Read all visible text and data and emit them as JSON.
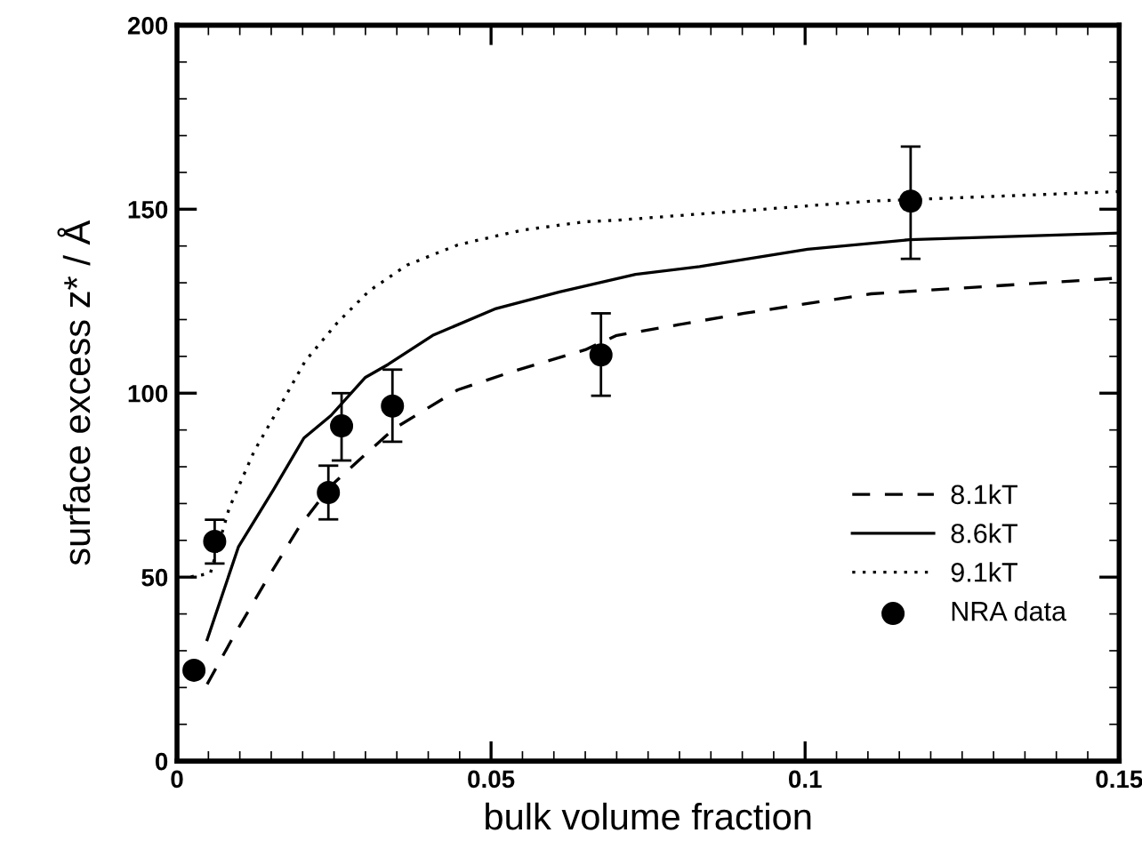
{
  "chart_data": {
    "type": "line",
    "xlabel": "bulk volume fraction",
    "ylabel": "surface excess z* / Å",
    "xlim": [
      0,
      0.15
    ],
    "ylim": [
      0,
      200
    ],
    "xticks": [
      0,
      0.05,
      0.1,
      0.15
    ],
    "yticks": [
      0,
      50,
      100,
      150,
      200
    ],
    "grid": false,
    "legend": "bottom right",
    "series": [
      {
        "name": "8.1kT",
        "color": "#000000",
        "line_style": "dashed",
        "x": [
          0.0048,
          0.0093,
          0.0144,
          0.0194,
          0.0245,
          0.0306,
          0.0346,
          0.0447,
          0.0538,
          0.065,
          0.07,
          0.0903,
          0.1105,
          0.15
        ],
        "values": [
          20.9,
          34.8,
          49.6,
          63.5,
          74.8,
          84.3,
          90.4,
          100.9,
          106.1,
          111.8,
          115.7,
          121.7,
          127,
          131.3
        ]
      },
      {
        "name": "8.6kT",
        "color": "#000000",
        "line_style": "solid",
        "x": [
          0.0048,
          0.0098,
          0.0154,
          0.0202,
          0.0245,
          0.03,
          0.0336,
          0.0407,
          0.0508,
          0.0609,
          0.073,
          0.0832,
          0.1004,
          0.1166,
          0.15
        ],
        "values": [
          33,
          58.3,
          73.9,
          87.8,
          93.9,
          104.3,
          107.8,
          115.7,
          123,
          127.5,
          132.3,
          134.4,
          139.1,
          141.7,
          143.5
        ]
      },
      {
        "name": "9.1kT",
        "color": "#000000",
        "line_style": "dotted",
        "x": [
          0.0022,
          0.0053,
          0.0083,
          0.0123,
          0.0164,
          0.0204,
          0.0255,
          0.0306,
          0.0366,
          0.0447,
          0.0549,
          0.065,
          0.07,
          0.0903,
          0.1105,
          0.15
        ],
        "values": [
          50.1,
          51,
          68.7,
          84.3,
          96.5,
          108.7,
          119.1,
          127.8,
          134.8,
          140.3,
          144.3,
          146.6,
          147,
          149.6,
          152.2,
          154.8
        ]
      },
      {
        "name": "NRA data",
        "type": "scatter",
        "marker": "circle",
        "color": "#000000",
        "x": [
          0.0027,
          0.006,
          0.0241,
          0.0262,
          0.0343,
          0.0675,
          0.1168
        ],
        "values": [
          24.7,
          59.7,
          73,
          91.1,
          96.5,
          110.4,
          152.2
        ],
        "errors": [
          null,
          [
            53.7,
            65.6
          ],
          [
            65.7,
            80.3
          ],
          [
            81.7,
            100
          ],
          [
            86.8,
            106.4
          ],
          [
            99.3,
            121.7
          ],
          [
            136.5,
            167
          ]
        ]
      }
    ]
  }
}
